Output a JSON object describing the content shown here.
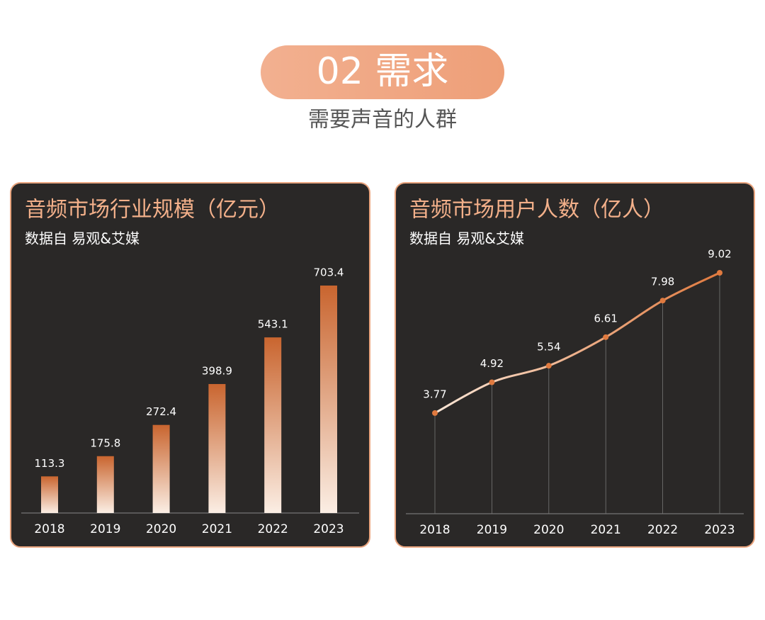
{
  "header": {
    "badge": "02 需求",
    "subtitle": "需要声音的人群"
  },
  "chart_data": [
    {
      "type": "bar",
      "title": "音频市场行业规模（亿元）",
      "subtitle": "数据自 易观&艾媒",
      "categories": [
        "2018",
        "2019",
        "2020",
        "2021",
        "2022",
        "2023"
      ],
      "values": [
        113.3,
        175.8,
        272.4,
        398.9,
        543.1,
        703.4
      ],
      "color": "#c9652f"
    },
    {
      "type": "line",
      "title": "音频市场用户人数（亿人）",
      "subtitle": "数据自 易观&艾媒",
      "categories": [
        "2018",
        "2019",
        "2020",
        "2021",
        "2022",
        "2023"
      ],
      "values": [
        3.77,
        4.92,
        5.54,
        6.61,
        7.98,
        9.02
      ],
      "color": "#e07a3f"
    }
  ]
}
